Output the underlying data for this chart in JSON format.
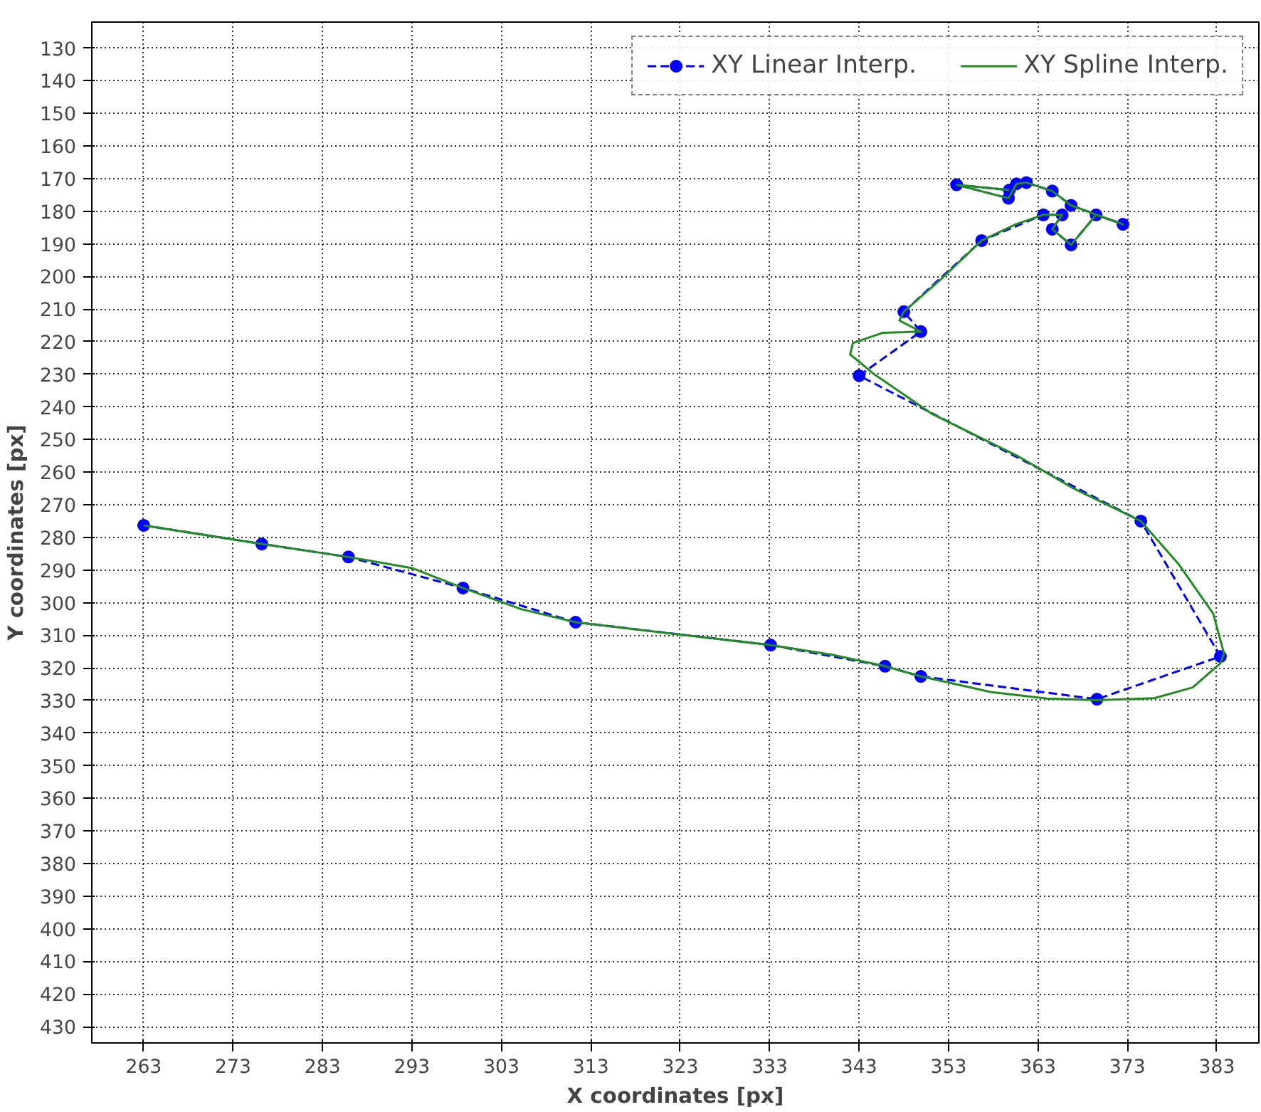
{
  "chart_data": {
    "type": "line",
    "xlabel": "X coordinates [px]",
    "ylabel": "Y coordinates [px]",
    "xlim": [
      257.2,
      387.7
    ],
    "ylim": [
      435,
      122
    ],
    "xticks": [
      263,
      273,
      283,
      293,
      303,
      313,
      323,
      333,
      343,
      353,
      363,
      373,
      383
    ],
    "yticks": [
      130,
      140,
      150,
      160,
      170,
      180,
      190,
      200,
      210,
      220,
      230,
      240,
      250,
      260,
      270,
      280,
      290,
      300,
      310,
      320,
      330,
      340,
      350,
      360,
      370,
      380,
      390,
      400,
      410,
      420,
      430
    ],
    "grid": true,
    "legend": "top right",
    "series": [
      {
        "name": "XY Linear Interp.",
        "color": "#0000ff",
        "line_style": "dashed",
        "marker": "circle",
        "x": [
          263,
          276.2,
          285.9,
          298.7,
          311.3,
          333.1,
          345.9,
          349.9,
          369.6,
          383.4,
          374.5,
          343,
          349.9,
          348,
          356.7,
          363.6,
          365.7,
          364.6,
          366.7,
          369.5,
          372.5,
          366.7,
          364.6,
          361.7,
          360.6,
          359.7,
          353.9,
          359.8
        ],
        "values": [
          276.3,
          282,
          286,
          295.5,
          306,
          313,
          319.5,
          322.6,
          329.6,
          316.5,
          275,
          230.4,
          216.9,
          210.8,
          189,
          181.1,
          181.1,
          185.5,
          190.3,
          181.1,
          184,
          178.2,
          173.8,
          171.2,
          171.6,
          176,
          171.9,
          173.5
        ]
      },
      {
        "name": "XY Spline Interp.",
        "color": "#228b22",
        "line_style": "solid",
        "marker": "none",
        "x": [
          263,
          276.2,
          285.9,
          293.0,
          298.7,
          305.2,
          311.3,
          322.0,
          333.1,
          340.0,
          345.9,
          349.9,
          357.7,
          364.0,
          369.6,
          376.0,
          380.3,
          383.4,
          383.8,
          382.6,
          378.7,
          374.5,
          367.0,
          360.9,
          351.2,
          344.7,
          342.0,
          342.3,
          345.6,
          349.9,
          347.5,
          348.0,
          352.2,
          356.7,
          360.5,
          363.6,
          365.7,
          364.6,
          366.7,
          369.5,
          372.5,
          366.7,
          364.6,
          361.7,
          360.6,
          359.7,
          353.9,
          359.8
        ],
        "values": [
          276.3,
          282,
          286,
          289.4,
          295.5,
          302,
          306,
          309.5,
          313,
          316,
          319.5,
          322.6,
          327.4,
          329.4,
          329.9,
          329.3,
          326,
          318.6,
          315.6,
          303.4,
          288.1,
          275,
          265,
          255.3,
          242.2,
          230,
          223.9,
          220.4,
          217.3,
          216.9,
          213.5,
          210.8,
          200.7,
          189,
          184.0,
          181.1,
          181.1,
          185.5,
          190.3,
          181.1,
          184,
          178.2,
          173.8,
          171.2,
          171.6,
          176,
          171.9,
          173.5
        ]
      }
    ]
  }
}
